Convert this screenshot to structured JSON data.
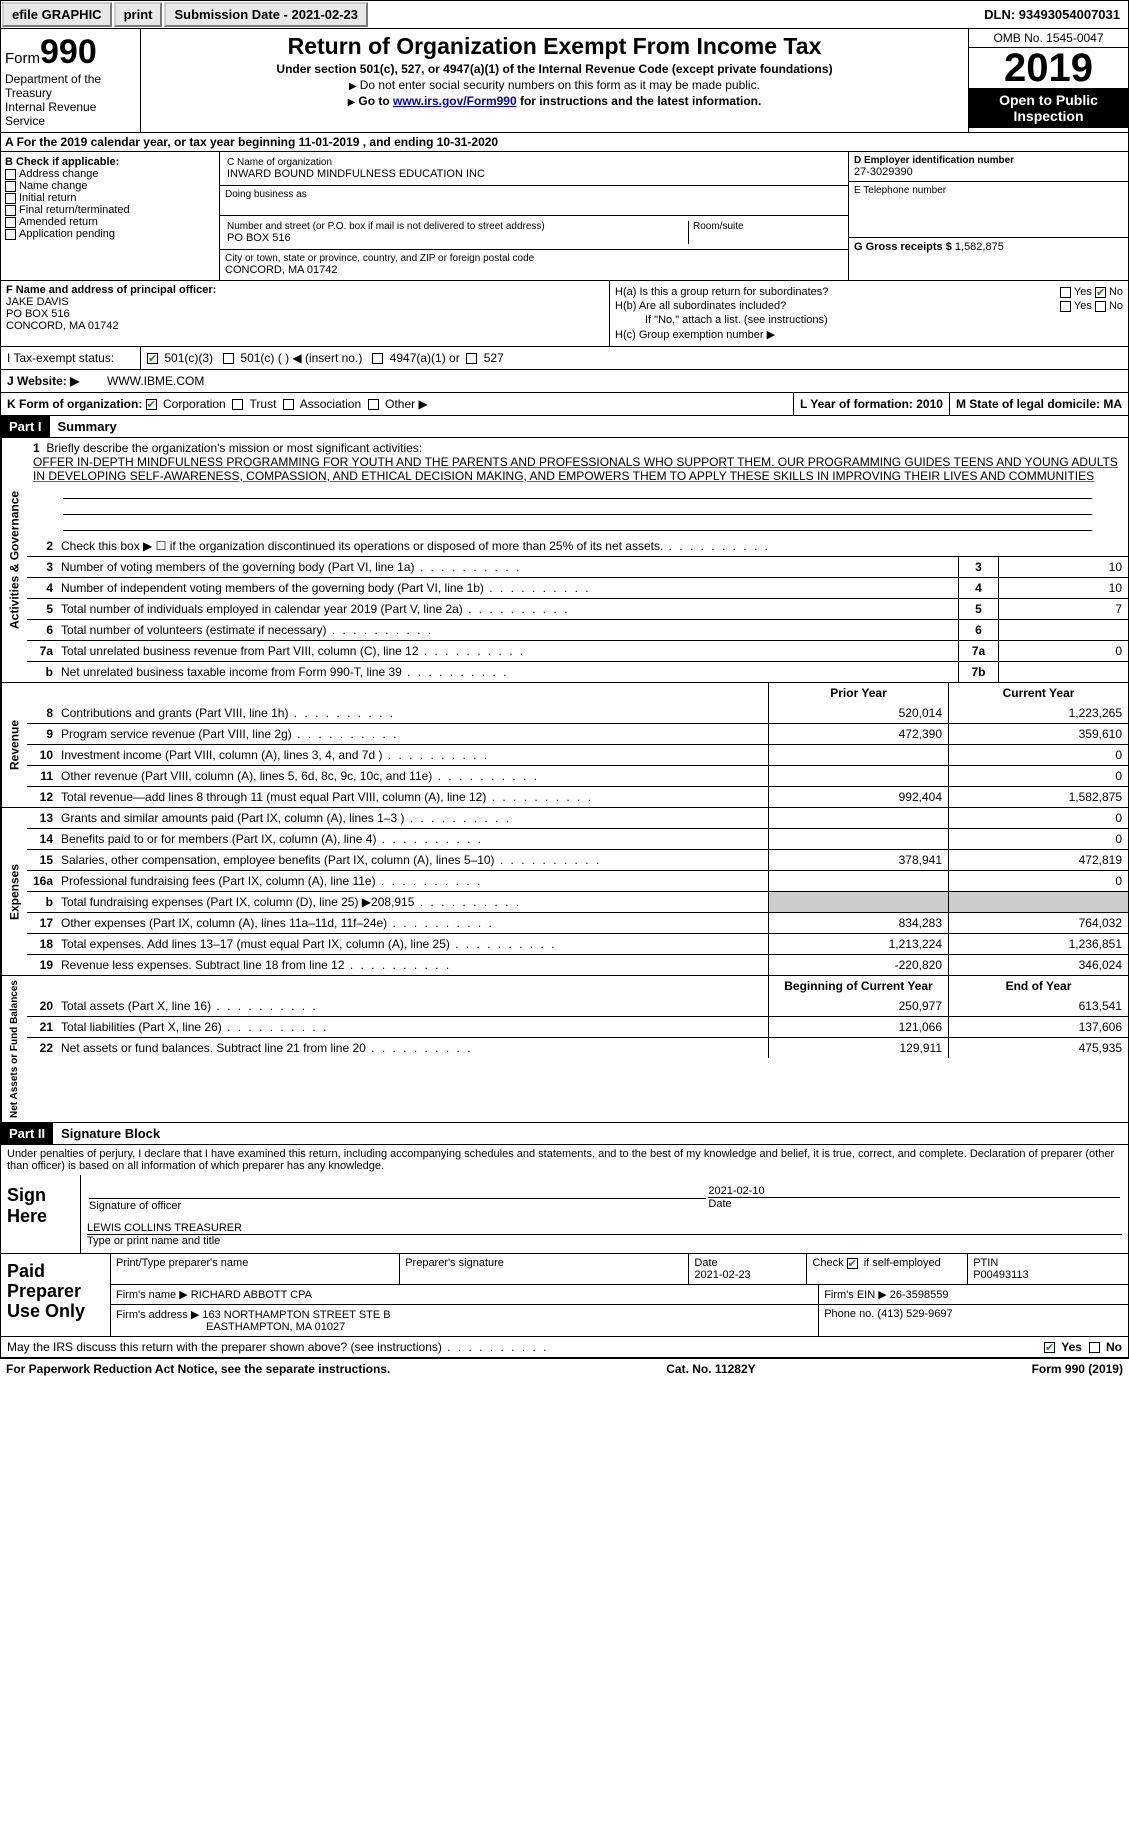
{
  "topbar": {
    "efile": "efile GRAPHIC",
    "print": "print",
    "submission": "Submission Date - 2021-02-23",
    "dln": "DLN: 93493054007031"
  },
  "header": {
    "form_prefix": "Form",
    "form_num": "990",
    "dept": "Department of the Treasury\nInternal Revenue Service",
    "title": "Return of Organization Exempt From Income Tax",
    "sub": "Under section 501(c), 527, or 4947(a)(1) of the Internal Revenue Code (except private foundations)",
    "note1": "Do not enter social security numbers on this form as it may be made public.",
    "note2_pre": "Go to ",
    "note2_link": "www.irs.gov/Form990",
    "note2_post": " for instructions and the latest information.",
    "omb": "OMB No. 1545-0047",
    "year": "2019",
    "open": "Open to Public Inspection"
  },
  "period": "For the 2019 calendar year, or tax year beginning 11-01-2019    , and ending 10-31-2020",
  "blockB": {
    "title": "B Check if applicable:",
    "opts": [
      "Address change",
      "Name change",
      "Initial return",
      "Final return/terminated",
      "Amended return",
      "Application pending"
    ]
  },
  "blockC": {
    "name_label": "C Name of organization",
    "name": "INWARD BOUND MINDFULNESS EDUCATION INC",
    "dba_label": "Doing business as",
    "dba": "",
    "addr_label": "Number and street (or P.O. box if mail is not delivered to street address)",
    "room_label": "Room/suite",
    "addr": "PO BOX 516",
    "city_label": "City or town, state or province, country, and ZIP or foreign postal code",
    "city": "CONCORD, MA  01742"
  },
  "blockD": {
    "label": "D Employer identification number",
    "val": "27-3029390"
  },
  "blockE": {
    "label": "E Telephone number",
    "val": ""
  },
  "blockG": {
    "label": "G Gross receipts $",
    "val": "1,582,875"
  },
  "blockF": {
    "label": "F  Name and address of principal officer:",
    "name": "JAKE DAVIS",
    "addr1": "PO BOX 516",
    "addr2": "CONCORD, MA  01742"
  },
  "blockH": {
    "a": "H(a)  Is this a group return for subordinates?",
    "b": "H(b)  Are all subordinates included?",
    "b_note": "If \"No,\" attach a list. (see instructions)",
    "c": "H(c)  Group exemption number ▶",
    "yes": "Yes",
    "no": "No"
  },
  "tax": {
    "i": "I  Tax-exempt status:",
    "c3": "501(c)(3)",
    "c": "501(c) (   ) ◀ (insert no.)",
    "a1": "4947(a)(1) or",
    "s527": "527"
  },
  "web": {
    "j": "J  Website: ▶",
    "val": "WWW.IBME.COM"
  },
  "kline": {
    "k": "K Form of organization:",
    "opts": [
      "Corporation",
      "Trust",
      "Association",
      "Other ▶"
    ],
    "l": "L Year of formation: 2010",
    "m": "M State of legal domicile: MA"
  },
  "part1": {
    "hdr": "Part I",
    "title": "Summary"
  },
  "mission": {
    "num": "1",
    "label": "Briefly describe the organization's mission or most significant activities:",
    "text": "OFFER IN-DEPTH MINDFULNESS PROGRAMMING FOR YOUTH AND THE PARENTS AND PROFESSIONALS WHO SUPPORT THEM. OUR PROGRAMMING GUIDES TEENS AND YOUNG ADULTS IN DEVELOPING SELF-AWARENESS, COMPASSION, AND ETHICAL DECISION MAKING, AND EMPOWERS THEM TO APPLY THESE SKILLS IN IMPROVING THEIR LIVES AND COMMUNITIES"
  },
  "gov_lines": [
    {
      "n": "2",
      "t": "Check this box ▶ ☐  if the organization discontinued its operations or disposed of more than 25% of its net assets.",
      "b": "",
      "v": ""
    },
    {
      "n": "3",
      "t": "Number of voting members of the governing body (Part VI, line 1a)",
      "b": "3",
      "v": "10"
    },
    {
      "n": "4",
      "t": "Number of independent voting members of the governing body (Part VI, line 1b)",
      "b": "4",
      "v": "10"
    },
    {
      "n": "5",
      "t": "Total number of individuals employed in calendar year 2019 (Part V, line 2a)",
      "b": "5",
      "v": "7"
    },
    {
      "n": "6",
      "t": "Total number of volunteers (estimate if necessary)",
      "b": "6",
      "v": ""
    },
    {
      "n": "7a",
      "t": "Total unrelated business revenue from Part VIII, column (C), line 12",
      "b": "7a",
      "v": "0"
    },
    {
      "n": "b",
      "t": "Net unrelated business taxable income from Form 990-T, line 39",
      "b": "7b",
      "v": ""
    }
  ],
  "col_hdr": {
    "prior": "Prior Year",
    "current": "Current Year"
  },
  "rev_lines": [
    {
      "n": "8",
      "t": "Contributions and grants (Part VIII, line 1h)",
      "p": "520,014",
      "c": "1,223,265"
    },
    {
      "n": "9",
      "t": "Program service revenue (Part VIII, line 2g)",
      "p": "472,390",
      "c": "359,610"
    },
    {
      "n": "10",
      "t": "Investment income (Part VIII, column (A), lines 3, 4, and 7d )",
      "p": "",
      "c": "0"
    },
    {
      "n": "11",
      "t": "Other revenue (Part VIII, column (A), lines 5, 6d, 8c, 9c, 10c, and 11e)",
      "p": "",
      "c": "0"
    },
    {
      "n": "12",
      "t": "Total revenue—add lines 8 through 11 (must equal Part VIII, column (A), line 12)",
      "p": "992,404",
      "c": "1,582,875"
    }
  ],
  "exp_lines": [
    {
      "n": "13",
      "t": "Grants and similar amounts paid (Part IX, column (A), lines 1–3 )",
      "p": "",
      "c": "0"
    },
    {
      "n": "14",
      "t": "Benefits paid to or for members (Part IX, column (A), line 4)",
      "p": "",
      "c": "0"
    },
    {
      "n": "15",
      "t": "Salaries, other compensation, employee benefits (Part IX, column (A), lines 5–10)",
      "p": "378,941",
      "c": "472,819"
    },
    {
      "n": "16a",
      "t": "Professional fundraising fees (Part IX, column (A), line 11e)",
      "p": "",
      "c": "0"
    },
    {
      "n": "b",
      "t": "Total fundraising expenses (Part IX, column (D), line 25) ▶208,915",
      "p": "GREY",
      "c": "GREY"
    },
    {
      "n": "17",
      "t": "Other expenses (Part IX, column (A), lines 11a–11d, 11f–24e)",
      "p": "834,283",
      "c": "764,032"
    },
    {
      "n": "18",
      "t": "Total expenses. Add lines 13–17 (must equal Part IX, column (A), line 25)",
      "p": "1,213,224",
      "c": "1,236,851"
    },
    {
      "n": "19",
      "t": "Revenue less expenses. Subtract line 18 from line 12",
      "p": "-220,820",
      "c": "346,024"
    }
  ],
  "net_hdr": {
    "begin": "Beginning of Current Year",
    "end": "End of Year"
  },
  "net_lines": [
    {
      "n": "20",
      "t": "Total assets (Part X, line 16)",
      "p": "250,977",
      "c": "613,541"
    },
    {
      "n": "21",
      "t": "Total liabilities (Part X, line 26)",
      "p": "121,066",
      "c": "137,606"
    },
    {
      "n": "22",
      "t": "Net assets or fund balances. Subtract line 21 from line 20",
      "p": "129,911",
      "c": "475,935"
    }
  ],
  "side": {
    "gov": "Activities & Governance",
    "rev": "Revenue",
    "exp": "Expenses",
    "net": "Net Assets or Fund Balances"
  },
  "part2": {
    "hdr": "Part II",
    "title": "Signature Block"
  },
  "sig": {
    "perjury": "Under penalties of perjury, I declare that I have examined this return, including accompanying schedules and statements, and to the best of my knowledge and belief, it is true, correct, and complete. Declaration of preparer (other than officer) is based on all information of which preparer has any knowledge.",
    "sign_here": "Sign Here",
    "sig_officer": "Signature of officer",
    "date": "Date",
    "date_val": "2021-02-10",
    "name": "LEWIS COLLINS  TREASURER",
    "name_label": "Type or print name and title"
  },
  "paid": {
    "label": "Paid Preparer Use Only",
    "h_name": "Print/Type preparer's name",
    "h_sig": "Preparer's signature",
    "h_date": "Date",
    "date_val": "2021-02-23",
    "h_check": "Check",
    "h_check2": "if self-employed",
    "h_ptin": "PTIN",
    "ptin": "P00493113",
    "firm_name_l": "Firm's name    ▶",
    "firm_name": "RICHARD ABBOTT CPA",
    "firm_ein_l": "Firm's EIN ▶",
    "firm_ein": "26-3598559",
    "firm_addr_l": "Firm's address ▶",
    "firm_addr": "163 NORTHAMPTON STREET STE B",
    "firm_city": "EASTHAMPTON, MA  01027",
    "phone_l": "Phone no.",
    "phone": "(413) 529-9697"
  },
  "discuss": {
    "q": "May the IRS discuss this return with the preparer shown above? (see instructions)",
    "yes": "Yes",
    "no": "No"
  },
  "footer": {
    "left": "For Paperwork Reduction Act Notice, see the separate instructions.",
    "mid": "Cat. No. 11282Y",
    "right": "Form 990 (2019)"
  }
}
